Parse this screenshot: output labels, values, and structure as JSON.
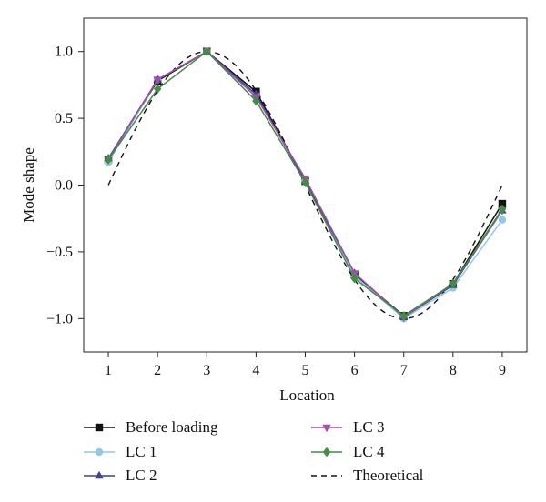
{
  "chart_data": {
    "type": "line",
    "title": "",
    "xlabel": "Location",
    "ylabel": "Mode shape",
    "x": [
      1,
      2,
      3,
      4,
      5,
      6,
      7,
      8,
      9
    ],
    "xlim": [
      0.5,
      9.5
    ],
    "ylim": [
      -1.25,
      1.25
    ],
    "xticks": [
      "1",
      "2",
      "3",
      "4",
      "5",
      "6",
      "7",
      "8",
      "9"
    ],
    "yticks": [
      "1.0",
      "0.5",
      "0.0",
      "−0.5",
      "−1.0"
    ],
    "ytick_values": [
      1.0,
      0.5,
      0.0,
      -0.5,
      -1.0
    ],
    "grid": false,
    "legend_position": "bottom",
    "series": [
      {
        "name": "Before loading",
        "color": "#111111",
        "marker": "square",
        "values": [
          0.19,
          0.78,
          1.0,
          0.7,
          0.03,
          -0.67,
          -0.98,
          -0.74,
          -0.14
        ]
      },
      {
        "name": "LC 1",
        "color": "#8ecae6",
        "marker": "circle",
        "values": [
          0.17,
          0.79,
          1.0,
          0.67,
          0.03,
          -0.68,
          -1.0,
          -0.77,
          -0.26
        ]
      },
      {
        "name": "LC 2",
        "color": "#3f3f9a",
        "marker": "triangle-up",
        "values": [
          0.2,
          0.79,
          1.0,
          0.68,
          0.03,
          -0.66,
          -0.99,
          -0.75,
          -0.19
        ]
      },
      {
        "name": "LC 3",
        "color": "#a64ca6",
        "marker": "triangle-down",
        "values": [
          0.19,
          0.79,
          1.0,
          0.66,
          0.05,
          -0.66,
          -0.99,
          -0.74,
          -0.19
        ]
      },
      {
        "name": "LC 4",
        "color": "#3f8f3f",
        "marker": "diamond",
        "values": [
          0.19,
          0.72,
          1.0,
          0.63,
          0.02,
          -0.7,
          -0.98,
          -0.74,
          -0.18
        ]
      }
    ],
    "theoretical": {
      "name": "Theoretical",
      "color": "#111111",
      "style": "dashed",
      "function": "sin(pi*(x-1)/4)",
      "range": [
        1,
        9
      ]
    }
  }
}
